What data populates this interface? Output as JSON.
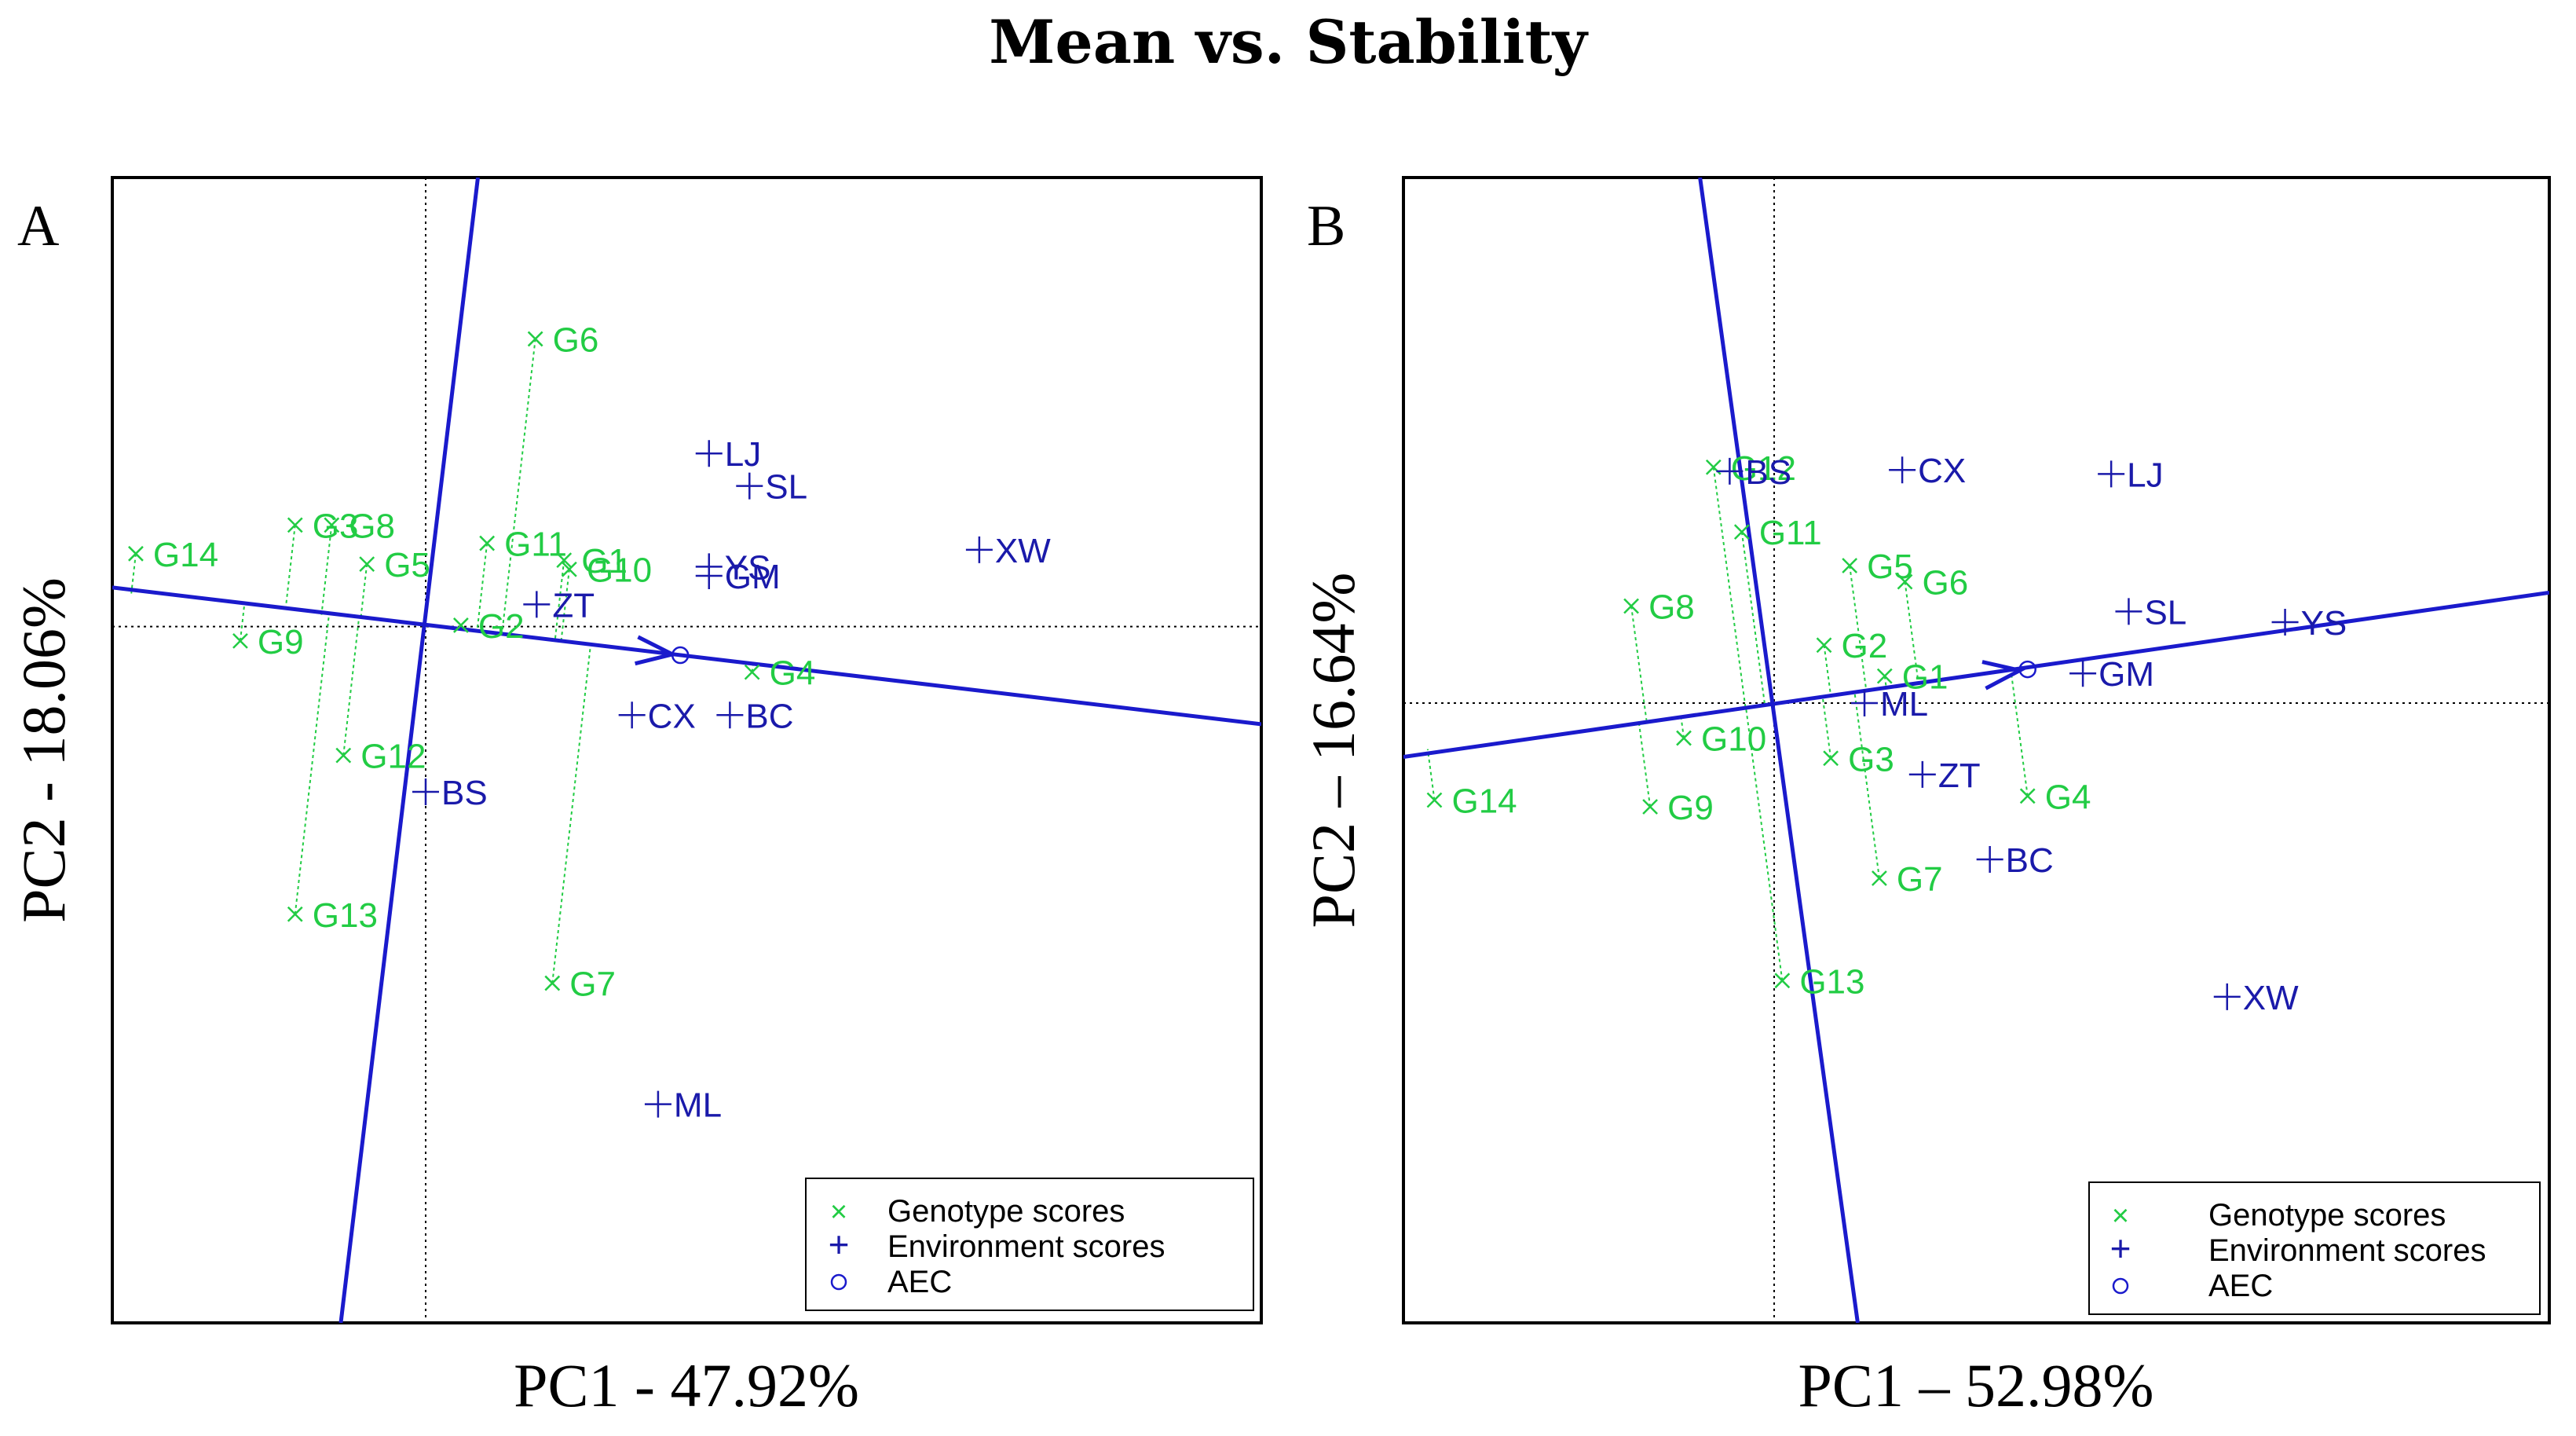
{
  "title": "Mean vs. Stability",
  "colors": {
    "genotype": "#22cc44",
    "environment": "#1a1aaa",
    "axis": "#1a1acc"
  },
  "legend": {
    "genotype": "Genotype scores",
    "environment": "Environment scores",
    "aec": "AEC"
  },
  "chart_data": [
    {
      "type": "scatter",
      "panel": "A",
      "title": "Mean vs. Stability",
      "xlabel": "PC1 - 47.92%",
      "ylabel": "PC2 - 18.06%",
      "xlim": [
        -2.4,
        6.4
      ],
      "ylim": [
        -5.35,
        3.45
      ],
      "grid": false,
      "legend_position": "bottom-right",
      "aec_point": [
        1.95,
        -0.22
      ],
      "aec_abscissa_far": [
        6.4,
        -0.75
      ],
      "aec_abscissa_near": [
        -2.4,
        0.3
      ],
      "aec_ordinate_top": [
        0.4,
        3.45
      ],
      "aec_ordinate_bottom": [
        -0.65,
        -5.35
      ],
      "genotypes": [
        {
          "name": "G1",
          "x": 1.06,
          "y": 0.51
        },
        {
          "name": "G2",
          "x": 0.27,
          "y": 0.01
        },
        {
          "name": "G3",
          "x": -1.0,
          "y": 0.78
        },
        {
          "name": "G4",
          "x": 2.5,
          "y": -0.35
        },
        {
          "name": "G5",
          "x": -0.45,
          "y": 0.48
        },
        {
          "name": "G6",
          "x": 0.84,
          "y": 2.21
        },
        {
          "name": "G7",
          "x": 0.97,
          "y": -2.74
        },
        {
          "name": "G8",
          "x": -0.72,
          "y": 0.78
        },
        {
          "name": "G9",
          "x": -1.42,
          "y": -0.11
        },
        {
          "name": "G10",
          "x": 1.1,
          "y": 0.44
        },
        {
          "name": "G11",
          "x": 0.47,
          "y": 0.64
        },
        {
          "name": "G12",
          "x": -0.63,
          "y": -0.99
        },
        {
          "name": "G13",
          "x": -1.0,
          "y": -2.21
        },
        {
          "name": "G14",
          "x": -2.22,
          "y": 0.56
        }
      ],
      "environments": [
        {
          "name": "LJ",
          "x": 2.17,
          "y": 1.33
        },
        {
          "name": "SL",
          "x": 2.48,
          "y": 1.08
        },
        {
          "name": "XW",
          "x": 4.24,
          "y": 0.59
        },
        {
          "name": "YS",
          "x": 2.17,
          "y": 0.46
        },
        {
          "name": "GM",
          "x": 2.17,
          "y": 0.39
        },
        {
          "name": "ZT",
          "x": 0.85,
          "y": 0.17
        },
        {
          "name": "CX",
          "x": 1.58,
          "y": -0.68
        },
        {
          "name": "BC",
          "x": 2.33,
          "y": -0.68
        },
        {
          "name": "BS",
          "x": 0.0,
          "y": -1.27
        },
        {
          "name": "ML",
          "x": 1.78,
          "y": -3.67
        }
      ]
    },
    {
      "type": "scatter",
      "panel": "B",
      "title": "Mean vs. Stability",
      "xlabel": "PC1 – 52.98%",
      "ylabel": "PC2 – 16.64%",
      "xlim": [
        -2.75,
        5.75
      ],
      "ylim": [
        -4.6,
        3.9
      ],
      "grid": false,
      "legend_position": "bottom-right",
      "aec_point": [
        1.88,
        0.25
      ],
      "aec_abscissa_far": [
        5.75,
        0.82
      ],
      "aec_abscissa_near": [
        -2.75,
        -0.4
      ],
      "aec_ordinate_top": [
        -0.55,
        3.9
      ],
      "aec_ordinate_bottom": [
        0.62,
        -4.6
      ],
      "genotypes": [
        {
          "name": "G1",
          "x": 0.82,
          "y": 0.2
        },
        {
          "name": "G2",
          "x": 0.37,
          "y": 0.43
        },
        {
          "name": "G3",
          "x": 0.42,
          "y": -0.41
        },
        {
          "name": "G4",
          "x": 1.88,
          "y": -0.69
        },
        {
          "name": "G5",
          "x": 0.56,
          "y": 1.02
        },
        {
          "name": "G6",
          "x": 0.97,
          "y": 0.9
        },
        {
          "name": "G7",
          "x": 0.78,
          "y": -1.3
        },
        {
          "name": "G8",
          "x": -1.06,
          "y": 0.72
        },
        {
          "name": "G9",
          "x": -0.92,
          "y": -0.77
        },
        {
          "name": "G10",
          "x": -0.67,
          "y": -0.26
        },
        {
          "name": "G11",
          "x": -0.24,
          "y": 1.27
        },
        {
          "name": "G12",
          "x": -0.45,
          "y": 1.75
        },
        {
          "name": "G13",
          "x": 0.06,
          "y": -2.06
        },
        {
          "name": "G14",
          "x": -2.52,
          "y": -0.72
        }
      ],
      "environments": [
        {
          "name": "BS",
          "x": -0.33,
          "y": 1.72
        },
        {
          "name": "CX",
          "x": 0.95,
          "y": 1.73
        },
        {
          "name": "LJ",
          "x": 2.5,
          "y": 1.7
        },
        {
          "name": "SL",
          "x": 2.63,
          "y": 0.68
        },
        {
          "name": "YS",
          "x": 3.79,
          "y": 0.6
        },
        {
          "name": "GM",
          "x": 2.29,
          "y": 0.22
        },
        {
          "name": "ML",
          "x": 0.67,
          "y": 0.0
        },
        {
          "name": "ZT",
          "x": 1.1,
          "y": -0.53
        },
        {
          "name": "BC",
          "x": 1.6,
          "y": -1.16
        },
        {
          "name": "XW",
          "x": 3.36,
          "y": -2.18
        }
      ]
    }
  ]
}
